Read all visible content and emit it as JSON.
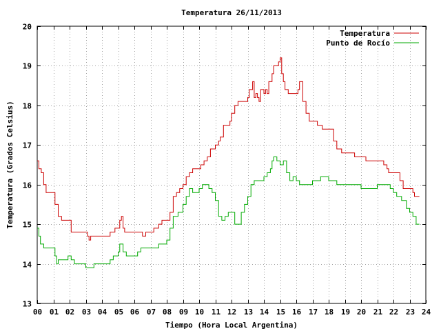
{
  "colors": {
    "temperature": "#cc0000",
    "dew_point": "#00aa00",
    "axis": "#000000",
    "grid": "#a0a0a0",
    "background": "#ffffff"
  },
  "chart_data": {
    "type": "line",
    "title": "Temperatura 26/11/2013",
    "xlabel": "Tiempo (Hora Local Argentina)",
    "ylabel": "Temperatura (Grados Celsius)",
    "xlim": [
      0,
      24
    ],
    "ylim": [
      13,
      20
    ],
    "xticks": [
      0,
      1,
      2,
      3,
      4,
      5,
      6,
      7,
      8,
      9,
      10,
      11,
      12,
      13,
      14,
      15,
      16,
      17,
      18,
      19,
      20,
      21,
      22,
      23,
      24
    ],
    "xtick_labels": [
      "00",
      "01",
      "02",
      "03",
      "04",
      "05",
      "06",
      "07",
      "08",
      "09",
      "10",
      "11",
      "12",
      "13",
      "14",
      "15",
      "16",
      "17",
      "18",
      "19",
      "20",
      "21",
      "22",
      "23",
      "24"
    ],
    "yticks": [
      13,
      14,
      15,
      16,
      17,
      18,
      19,
      20
    ],
    "ytick_labels": [
      "13",
      "14",
      "15",
      "16",
      "17",
      "18",
      "19",
      "20"
    ],
    "grid": true,
    "legend_position": "top-right",
    "series": [
      {
        "name": "Temperatura",
        "color": "#cc0000",
        "points": [
          [
            0.0,
            16.6
          ],
          [
            0.1,
            16.4
          ],
          [
            0.25,
            16.3
          ],
          [
            0.4,
            16.0
          ],
          [
            0.55,
            15.8
          ],
          [
            1.0,
            15.8
          ],
          [
            1.1,
            15.5
          ],
          [
            1.3,
            15.2
          ],
          [
            1.5,
            15.1
          ],
          [
            1.9,
            15.1
          ],
          [
            2.1,
            14.8
          ],
          [
            2.5,
            14.8
          ],
          [
            2.9,
            14.8
          ],
          [
            3.1,
            14.7
          ],
          [
            3.2,
            14.6
          ],
          [
            3.3,
            14.7
          ],
          [
            3.6,
            14.7
          ],
          [
            4.2,
            14.7
          ],
          [
            4.5,
            14.8
          ],
          [
            4.8,
            14.9
          ],
          [
            5.0,
            14.9
          ],
          [
            5.1,
            15.1
          ],
          [
            5.2,
            15.2
          ],
          [
            5.3,
            14.9
          ],
          [
            5.4,
            14.8
          ],
          [
            5.8,
            14.8
          ],
          [
            6.4,
            14.8
          ],
          [
            6.5,
            14.7
          ],
          [
            6.6,
            14.7
          ],
          [
            6.7,
            14.8
          ],
          [
            7.0,
            14.8
          ],
          [
            7.2,
            14.9
          ],
          [
            7.5,
            15.0
          ],
          [
            7.7,
            15.1
          ],
          [
            8.0,
            15.1
          ],
          [
            8.2,
            15.3
          ],
          [
            8.4,
            15.7
          ],
          [
            8.6,
            15.8
          ],
          [
            8.8,
            15.9
          ],
          [
            9.0,
            16.0
          ],
          [
            9.2,
            16.2
          ],
          [
            9.4,
            16.3
          ],
          [
            9.6,
            16.4
          ],
          [
            9.9,
            16.4
          ],
          [
            10.1,
            16.5
          ],
          [
            10.3,
            16.6
          ],
          [
            10.5,
            16.7
          ],
          [
            10.7,
            16.9
          ],
          [
            10.9,
            16.9
          ],
          [
            11.0,
            17.0
          ],
          [
            11.2,
            17.1
          ],
          [
            11.3,
            17.2
          ],
          [
            11.5,
            17.5
          ],
          [
            11.7,
            17.5
          ],
          [
            11.9,
            17.6
          ],
          [
            12.0,
            17.8
          ],
          [
            12.2,
            18.0
          ],
          [
            12.4,
            18.1
          ],
          [
            12.6,
            18.1
          ],
          [
            12.9,
            18.1
          ],
          [
            13.0,
            18.2
          ],
          [
            13.1,
            18.4
          ],
          [
            13.3,
            18.6
          ],
          [
            13.4,
            18.2
          ],
          [
            13.5,
            18.3
          ],
          [
            13.6,
            18.2
          ],
          [
            13.7,
            18.1
          ],
          [
            13.8,
            18.4
          ],
          [
            14.0,
            18.3
          ],
          [
            14.1,
            18.4
          ],
          [
            14.2,
            18.3
          ],
          [
            14.3,
            18.6
          ],
          [
            14.5,
            18.8
          ],
          [
            14.6,
            19.0
          ],
          [
            14.8,
            19.0
          ],
          [
            14.9,
            19.1
          ],
          [
            15.0,
            19.2
          ],
          [
            15.1,
            18.8
          ],
          [
            15.2,
            18.6
          ],
          [
            15.3,
            18.4
          ],
          [
            15.5,
            18.3
          ],
          [
            15.8,
            18.3
          ],
          [
            16.0,
            18.3
          ],
          [
            16.1,
            18.4
          ],
          [
            16.2,
            18.6
          ],
          [
            16.4,
            18.1
          ],
          [
            16.6,
            17.8
          ],
          [
            16.8,
            17.6
          ],
          [
            17.0,
            17.6
          ],
          [
            17.3,
            17.5
          ],
          [
            17.6,
            17.4
          ],
          [
            18.0,
            17.4
          ],
          [
            18.3,
            17.1
          ],
          [
            18.5,
            16.9
          ],
          [
            18.8,
            16.8
          ],
          [
            19.2,
            16.8
          ],
          [
            19.6,
            16.7
          ],
          [
            20.0,
            16.7
          ],
          [
            20.3,
            16.6
          ],
          [
            20.8,
            16.6
          ],
          [
            21.2,
            16.6
          ],
          [
            21.4,
            16.5
          ],
          [
            21.6,
            16.4
          ],
          [
            21.7,
            16.3
          ],
          [
            22.0,
            16.3
          ],
          [
            22.4,
            16.1
          ],
          [
            22.6,
            15.9
          ],
          [
            22.9,
            15.9
          ],
          [
            23.2,
            15.8
          ],
          [
            23.3,
            15.7
          ],
          [
            23.6,
            15.7
          ]
        ]
      },
      {
        "name": "Punto de Rocío",
        "color": "#00aa00",
        "points": [
          [
            0.0,
            14.9
          ],
          [
            0.1,
            14.7
          ],
          [
            0.2,
            14.5
          ],
          [
            0.4,
            14.4
          ],
          [
            0.6,
            14.4
          ],
          [
            1.0,
            14.4
          ],
          [
            1.1,
            14.2
          ],
          [
            1.2,
            14.0
          ],
          [
            1.3,
            14.1
          ],
          [
            1.5,
            14.1
          ],
          [
            1.9,
            14.2
          ],
          [
            2.1,
            14.1
          ],
          [
            2.3,
            14.0
          ],
          [
            2.7,
            14.0
          ],
          [
            2.9,
            14.0
          ],
          [
            3.0,
            13.9
          ],
          [
            3.3,
            13.9
          ],
          [
            3.5,
            14.0
          ],
          [
            4.0,
            14.0
          ],
          [
            4.3,
            14.0
          ],
          [
            4.5,
            14.1
          ],
          [
            4.7,
            14.2
          ],
          [
            5.0,
            14.3
          ],
          [
            5.1,
            14.5
          ],
          [
            5.3,
            14.3
          ],
          [
            5.5,
            14.2
          ],
          [
            6.0,
            14.2
          ],
          [
            6.2,
            14.3
          ],
          [
            6.4,
            14.4
          ],
          [
            6.8,
            14.4
          ],
          [
            7.2,
            14.4
          ],
          [
            7.5,
            14.5
          ],
          [
            7.8,
            14.5
          ],
          [
            8.0,
            14.6
          ],
          [
            8.2,
            14.9
          ],
          [
            8.4,
            15.2
          ],
          [
            8.7,
            15.3
          ],
          [
            9.0,
            15.5
          ],
          [
            9.2,
            15.7
          ],
          [
            9.4,
            15.9
          ],
          [
            9.6,
            15.8
          ],
          [
            10.0,
            15.9
          ],
          [
            10.2,
            16.0
          ],
          [
            10.4,
            16.0
          ],
          [
            10.6,
            15.9
          ],
          [
            10.8,
            15.8
          ],
          [
            11.0,
            15.6
          ],
          [
            11.2,
            15.2
          ],
          [
            11.4,
            15.1
          ],
          [
            11.6,
            15.2
          ],
          [
            11.8,
            15.3
          ],
          [
            12.0,
            15.3
          ],
          [
            12.2,
            15.0
          ],
          [
            12.4,
            15.0
          ],
          [
            12.6,
            15.3
          ],
          [
            12.8,
            15.5
          ],
          [
            13.0,
            15.7
          ],
          [
            13.2,
            16.0
          ],
          [
            13.4,
            16.1
          ],
          [
            13.6,
            16.1
          ],
          [
            13.8,
            16.1
          ],
          [
            14.0,
            16.2
          ],
          [
            14.2,
            16.3
          ],
          [
            14.4,
            16.4
          ],
          [
            14.5,
            16.6
          ],
          [
            14.6,
            16.7
          ],
          [
            14.8,
            16.6
          ],
          [
            15.0,
            16.5
          ],
          [
            15.2,
            16.6
          ],
          [
            15.4,
            16.3
          ],
          [
            15.6,
            16.1
          ],
          [
            15.8,
            16.2
          ],
          [
            16.0,
            16.1
          ],
          [
            16.2,
            16.0
          ],
          [
            16.4,
            16.0
          ],
          [
            16.6,
            16.0
          ],
          [
            17.0,
            16.1
          ],
          [
            17.2,
            16.1
          ],
          [
            17.5,
            16.2
          ],
          [
            18.0,
            16.1
          ],
          [
            18.5,
            16.0
          ],
          [
            19.0,
            16.0
          ],
          [
            19.5,
            16.0
          ],
          [
            20.0,
            15.9
          ],
          [
            20.5,
            15.9
          ],
          [
            21.0,
            16.0
          ],
          [
            21.5,
            16.0
          ],
          [
            21.8,
            15.9
          ],
          [
            22.0,
            15.8
          ],
          [
            22.2,
            15.7
          ],
          [
            22.5,
            15.6
          ],
          [
            22.8,
            15.4
          ],
          [
            23.0,
            15.3
          ],
          [
            23.2,
            15.2
          ],
          [
            23.4,
            15.0
          ],
          [
            23.6,
            15.0
          ]
        ]
      }
    ]
  }
}
